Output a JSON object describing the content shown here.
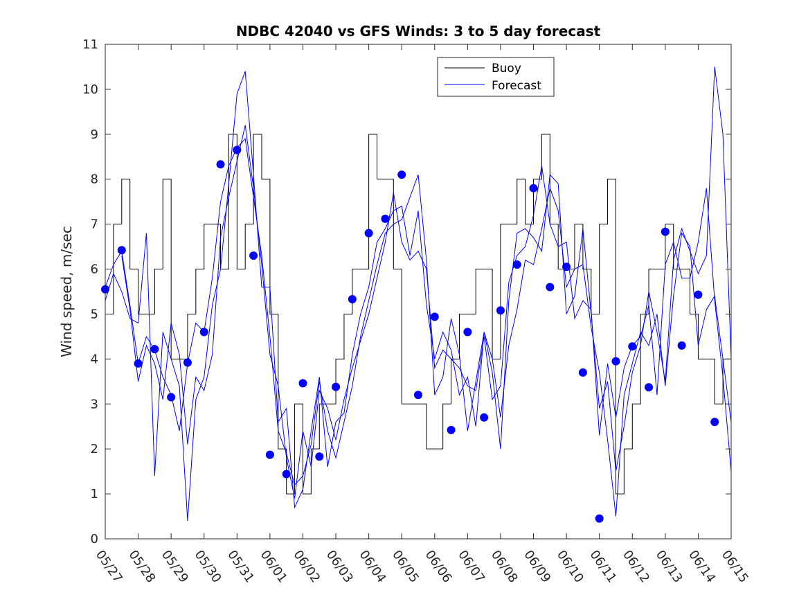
{
  "chart_data": {
    "type": "line",
    "title": "NDBC 42040 vs GFS Winds: 3 to 5 day forecast",
    "xlabel": "",
    "ylabel": "Wind speed, m/sec",
    "xlim": [
      "05/27",
      "06/15"
    ],
    "ylim": [
      0,
      11
    ],
    "x_ticks": [
      "05/27",
      "05/28",
      "05/29",
      "05/30",
      "05/31",
      "06/01",
      "06/02",
      "06/03",
      "06/04",
      "06/05",
      "06/06",
      "06/07",
      "06/08",
      "06/09",
      "06/10",
      "06/11",
      "06/12",
      "06/13",
      "06/14",
      "06/15"
    ],
    "y_ticks": [
      0,
      1,
      2,
      3,
      4,
      5,
      6,
      7,
      8,
      9,
      10,
      11
    ],
    "grid": false,
    "legend": {
      "placement": "top-right",
      "entries": [
        "Buoy",
        "Forecast"
      ]
    },
    "colors": {
      "buoy": "#000000",
      "forecast": "#0000ff",
      "markers": "#0000ff"
    },
    "series": [
      {
        "name": "Buoy",
        "x": [
          "05/27 00:00",
          "05/27 06:00",
          "05/27 12:00",
          "05/27 18:00",
          "05/28 00:00",
          "05/28 06:00",
          "05/28 12:00",
          "05/28 18:00",
          "05/29 00:00",
          "05/29 06:00",
          "05/29 12:00",
          "05/29 18:00",
          "05/30 00:00",
          "05/30 06:00",
          "05/30 12:00",
          "05/30 18:00",
          "05/31 00:00",
          "05/31 06:00",
          "05/31 12:00",
          "05/31 18:00",
          "06/01 00:00",
          "06/01 06:00",
          "06/01 12:00",
          "06/01 18:00",
          "06/02 00:00",
          "06/02 06:00",
          "06/02 12:00",
          "06/02 18:00",
          "06/03 00:00",
          "06/03 06:00",
          "06/03 12:00",
          "06/03 18:00",
          "06/04 00:00",
          "06/04 06:00",
          "06/04 12:00",
          "06/04 18:00",
          "06/05 00:00",
          "06/05 06:00",
          "06/05 12:00",
          "06/05 18:00",
          "06/06 00:00",
          "06/06 06:00",
          "06/06 12:00",
          "06/06 18:00",
          "06/07 00:00",
          "06/07 06:00",
          "06/07 12:00",
          "06/07 18:00",
          "06/08 00:00",
          "06/08 06:00",
          "06/08 12:00",
          "06/08 18:00",
          "06/09 00:00",
          "06/09 06:00",
          "06/09 12:00",
          "06/09 18:00",
          "06/10 00:00",
          "06/10 06:00",
          "06/10 12:00",
          "06/10 18:00",
          "06/11 00:00",
          "06/11 06:00",
          "06/11 12:00",
          "06/11 18:00",
          "06/12 00:00",
          "06/12 06:00",
          "06/12 12:00",
          "06/12 18:00",
          "06/13 00:00",
          "06/13 06:00",
          "06/13 12:00",
          "06/13 18:00",
          "06/14 00:00",
          "06/14 06:00",
          "06/14 12:00",
          "06/14 18:00",
          "06/15 00:00"
        ],
        "values": [
          5,
          7,
          8,
          6,
          5,
          5,
          6,
          8,
          4,
          4,
          5,
          6,
          7,
          7,
          6,
          9,
          6,
          7,
          9,
          8,
          5,
          2,
          1,
          3,
          1,
          2,
          3,
          3,
          4,
          5,
          6,
          6,
          9,
          8,
          8,
          6,
          3,
          3,
          3,
          2,
          2,
          3,
          4,
          5,
          5,
          6,
          6,
          4,
          7,
          7,
          8,
          7,
          8,
          9,
          7,
          6,
          6,
          7,
          6,
          5,
          7,
          8,
          1,
          2,
          3,
          5,
          6,
          6,
          7,
          6,
          6,
          5,
          4,
          4,
          3,
          4,
          5
        ]
      },
      {
        "name": "Forecast",
        "runs": [
          {
            "x": [
              "05/27 00:00",
              "05/27 06:00",
              "05/27 12:00",
              "05/27 18:00",
              "05/28 00:00",
              "05/28 06:00",
              "05/28 12:00",
              "05/28 18:00",
              "05/29 00:00",
              "05/29 06:00",
              "05/29 12:00",
              "05/29 18:00",
              "05/30 00:00",
              "05/30 06:00",
              "05/30 12:00",
              "05/30 18:00",
              "05/31 00:00",
              "05/31 06:00",
              "05/31 12:00",
              "05/31 18:00",
              "06/01 00:00",
              "06/01 06:00",
              "06/01 12:00",
              "06/01 18:00",
              "06/02 00:00",
              "06/02 06:00",
              "06/02 12:00",
              "06/02 18:00",
              "06/03 00:00",
              "06/03 06:00",
              "06/03 12:00",
              "06/03 18:00",
              "06/04 00:00",
              "06/04 06:00",
              "06/04 12:00",
              "06/04 18:00",
              "06/05 00:00",
              "06/05 06:00",
              "06/05 12:00",
              "06/05 18:00",
              "06/06 00:00",
              "06/06 06:00",
              "06/06 12:00",
              "06/06 18:00",
              "06/07 00:00",
              "06/07 06:00",
              "06/07 12:00",
              "06/07 18:00",
              "06/08 00:00",
              "06/08 06:00",
              "06/08 12:00",
              "06/08 18:00",
              "06/09 00:00",
              "06/09 06:00",
              "06/09 12:00",
              "06/09 18:00",
              "06/10 00:00",
              "06/10 06:00",
              "06/10 12:00",
              "06/10 18:00",
              "06/11 00:00",
              "06/11 06:00",
              "06/11 12:00",
              "06/11 18:00",
              "06/12 00:00",
              "06/12 06:00",
              "06/12 12:00",
              "06/12 18:00",
              "06/13 00:00",
              "06/13 06:00",
              "06/13 12:00",
              "06/13 18:00",
              "06/14 00:00",
              "06/14 06:00",
              "06/14 12:00",
              "06/14 18:00",
              "06/15 00:00"
            ],
            "values": [
              5.6,
              6.1,
              6.4,
              5.2,
              3.9,
              4.5,
              4.2,
              3.6,
              3.2,
              2.4,
              3.9,
              4.8,
              4.6,
              5.8,
              7.5,
              8.3,
              8.7,
              8.9,
              7.6,
              6.3,
              4.5,
              2.4,
              1.9,
              1.2,
              1.4,
              2.1,
              3.5,
              2.4,
              1.8,
              2.6,
              3.4,
              4.5,
              5.3,
              6.1,
              6.8,
              7.0,
              7.1,
              7.6,
              8.1,
              6.2,
              3.2,
              3.6,
              4.9,
              4.1,
              2.4,
              3.5,
              4.6,
              4.0,
              2.7,
              4.3,
              5.1,
              6.2,
              6.1,
              6.9,
              7.8,
              7.3,
              5.6,
              6.0,
              6.1,
              4.7,
              3.7,
              2.2,
              0.5,
              3.2,
              3.9,
              4.6,
              4.3,
              5.0,
              3.4,
              5.4,
              6.8,
              6.5,
              4.3,
              5.1,
              5.4,
              4.0,
              2.6
            ]
          },
          {
            "x": [
              "05/27 00:00",
              "05/27 06:00",
              "05/27 12:00",
              "05/27 18:00",
              "05/28 00:00",
              "05/28 06:00",
              "05/28 12:00",
              "05/28 18:00",
              "05/29 00:00",
              "05/29 06:00",
              "05/29 12:00",
              "05/29 18:00",
              "05/30 00:00",
              "05/30 06:00",
              "05/30 12:00",
              "05/30 18:00",
              "05/31 00:00",
              "05/31 06:00",
              "05/31 12:00",
              "05/31 18:00",
              "06/01 00:00",
              "06/01 06:00",
              "06/01 12:00",
              "06/01 18:00",
              "06/02 00:00",
              "06/02 06:00",
              "06/02 12:00",
              "06/02 18:00",
              "06/03 00:00",
              "06/03 06:00",
              "06/03 12:00",
              "06/03 18:00",
              "06/04 00:00",
              "06/04 06:00",
              "06/04 12:00",
              "06/04 18:00",
              "06/05 00:00",
              "06/05 06:00",
              "06/05 12:00",
              "06/05 18:00",
              "06/06 00:00",
              "06/06 06:00",
              "06/06 12:00",
              "06/06 18:00",
              "06/07 00:00",
              "06/07 06:00",
              "06/07 12:00",
              "06/07 18:00",
              "06/08 00:00",
              "06/08 06:00",
              "06/08 12:00",
              "06/08 18:00",
              "06/09 00:00",
              "06/09 06:00",
              "06/09 12:00",
              "06/09 18:00",
              "06/10 00:00",
              "06/10 06:00",
              "06/10 12:00",
              "06/10 18:00",
              "06/11 00:00",
              "06/11 06:00",
              "06/11 12:00",
              "06/11 18:00",
              "06/12 00:00",
              "06/12 06:00",
              "06/12 12:00",
              "06/12 18:00",
              "06/13 00:00",
              "06/13 06:00",
              "06/13 12:00",
              "06/13 18:00",
              "06/14 00:00",
              "06/14 06:00",
              "06/14 12:00",
              "06/14 18:00",
              "06/15 00:00"
            ],
            "values": [
              5.3,
              5.9,
              5.5,
              4.9,
              4.8,
              6.8,
              1.4,
              4.6,
              4.0,
              3.4,
              0.4,
              3.1,
              3.6,
              5.2,
              6.0,
              7.9,
              9.9,
              10.4,
              8.1,
              5.6,
              5.6,
              2.6,
              2.9,
              0.7,
              1.1,
              2.4,
              3.6,
              1.6,
              2.6,
              2.8,
              4.1,
              5.0,
              5.6,
              6.6,
              6.9,
              7.3,
              7.4,
              6.3,
              7.3,
              5.2,
              4.0,
              4.6,
              4.2,
              3.2,
              3.6,
              2.5,
              4.6,
              3.7,
              2.0,
              5.3,
              6.8,
              6.9,
              6.7,
              6.4,
              8.1,
              7.9,
              5.0,
              5.4,
              6.9,
              5.0,
              2.9,
              3.5,
              1.5,
              2.5,
              3.7,
              4.3,
              5.5,
              4.6,
              3.5,
              6.2,
              6.9,
              6.4,
              5.9,
              6.3,
              10.5,
              9.0,
              4.0
            ]
          },
          {
            "x": [
              "05/27 12:00",
              "05/27 18:00",
              "05/28 00:00",
              "05/28 06:00",
              "05/28 12:00",
              "05/28 18:00",
              "05/29 00:00",
              "05/29 06:00",
              "05/29 12:00",
              "05/29 18:00",
              "05/30 00:00",
              "05/30 06:00",
              "05/30 12:00",
              "05/30 18:00",
              "05/31 00:00",
              "05/31 06:00",
              "05/31 12:00",
              "05/31 18:00",
              "06/01 00:00",
              "06/01 06:00",
              "06/01 12:00",
              "06/01 18:00",
              "06/02 00:00",
              "06/02 06:00",
              "06/02 12:00",
              "06/02 18:00",
              "06/03 00:00",
              "06/03 06:00",
              "06/03 12:00",
              "06/03 18:00",
              "06/04 00:00",
              "06/04 06:00",
              "06/04 12:00",
              "06/04 18:00",
              "06/05 00:00",
              "06/05 06:00",
              "06/05 12:00",
              "06/05 18:00",
              "06/06 00:00",
              "06/06 06:00",
              "06/06 12:00",
              "06/06 18:00",
              "06/07 00:00",
              "06/07 06:00",
              "06/07 12:00",
              "06/07 18:00",
              "06/08 00:00",
              "06/08 06:00",
              "06/08 12:00",
              "06/08 18:00",
              "06/09 00:00",
              "06/09 06:00",
              "06/09 12:00",
              "06/09 18:00",
              "06/10 00:00",
              "06/10 06:00",
              "06/10 12:00",
              "06/10 18:00",
              "06/11 00:00",
              "06/11 06:00",
              "06/11 12:00",
              "06/11 18:00",
              "06/12 00:00",
              "06/12 06:00",
              "06/12 12:00",
              "06/12 18:00",
              "06/13 00:00",
              "06/13 06:00",
              "06/13 12:00",
              "06/13 18:00",
              "06/14 00:00",
              "06/14 06:00",
              "06/14 12:00",
              "06/14 18:00",
              "06/15 00:00"
            ],
            "values": [
              6.3,
              5.1,
              3.5,
              4.3,
              3.9,
              3.1,
              4.8,
              4.1,
              2.1,
              3.6,
              3.3,
              4.1,
              6.7,
              7.6,
              8.4,
              9.2,
              7.8,
              6.1,
              4.1,
              3.4,
              1.8,
              0.9,
              2.4,
              1.6,
              3.3,
              2.9,
              2.2,
              3.1,
              3.8,
              4.4,
              5.0,
              5.8,
              6.6,
              7.7,
              6.6,
              6.2,
              6.4,
              6.0,
              3.8,
              4.2,
              4.0,
              3.8,
              3.4,
              3.3,
              4.5,
              3.1,
              3.4,
              5.7,
              6.3,
              6.5,
              7.2,
              8.3,
              7.0,
              6.5,
              6.6,
              4.9,
              5.3,
              5.1,
              2.3,
              3.9,
              2.7,
              3.8,
              4.3,
              4.5,
              5.2,
              3.2,
              6.1,
              6.6,
              5.8,
              5.8,
              6.6,
              7.8,
              5.3,
              3.6,
              1.5
            ]
          }
        ]
      },
      {
        "name": "Forecast markers",
        "x": [
          "05/27 00:00",
          "05/27 12:00",
          "05/28 00:00",
          "05/28 12:00",
          "05/29 00:00",
          "05/29 12:00",
          "05/30 00:00",
          "05/30 12:00",
          "05/31 00:00",
          "05/31 12:00",
          "06/01 00:00",
          "06/01 12:00",
          "06/02 00:00",
          "06/02 12:00",
          "06/03 00:00",
          "06/03 12:00",
          "06/04 00:00",
          "06/04 12:00",
          "06/05 00:00",
          "06/05 12:00",
          "06/06 00:00",
          "06/06 12:00",
          "06/07 00:00",
          "06/07 12:00",
          "06/08 00:00",
          "06/08 12:00",
          "06/09 00:00",
          "06/09 12:00",
          "06/10 00:00",
          "06/10 12:00",
          "06/11 00:00",
          "06/11 12:00",
          "06/12 00:00",
          "06/12 12:00",
          "06/13 00:00",
          "06/13 12:00",
          "06/14 00:00",
          "06/14 12:00"
        ],
        "values": [
          5.55,
          6.42,
          3.9,
          4.22,
          3.15,
          3.92,
          4.6,
          8.33,
          8.65,
          6.3,
          1.87,
          1.44,
          3.46,
          1.83,
          3.38,
          5.33,
          6.8,
          7.12,
          8.1,
          3.2,
          4.94,
          2.42,
          4.6,
          2.7,
          5.08,
          6.1,
          7.8,
          5.6,
          6.05,
          3.7,
          0.45,
          3.95,
          4.28,
          3.37,
          6.83,
          4.3,
          5.43,
          2.6
        ]
      }
    ]
  }
}
